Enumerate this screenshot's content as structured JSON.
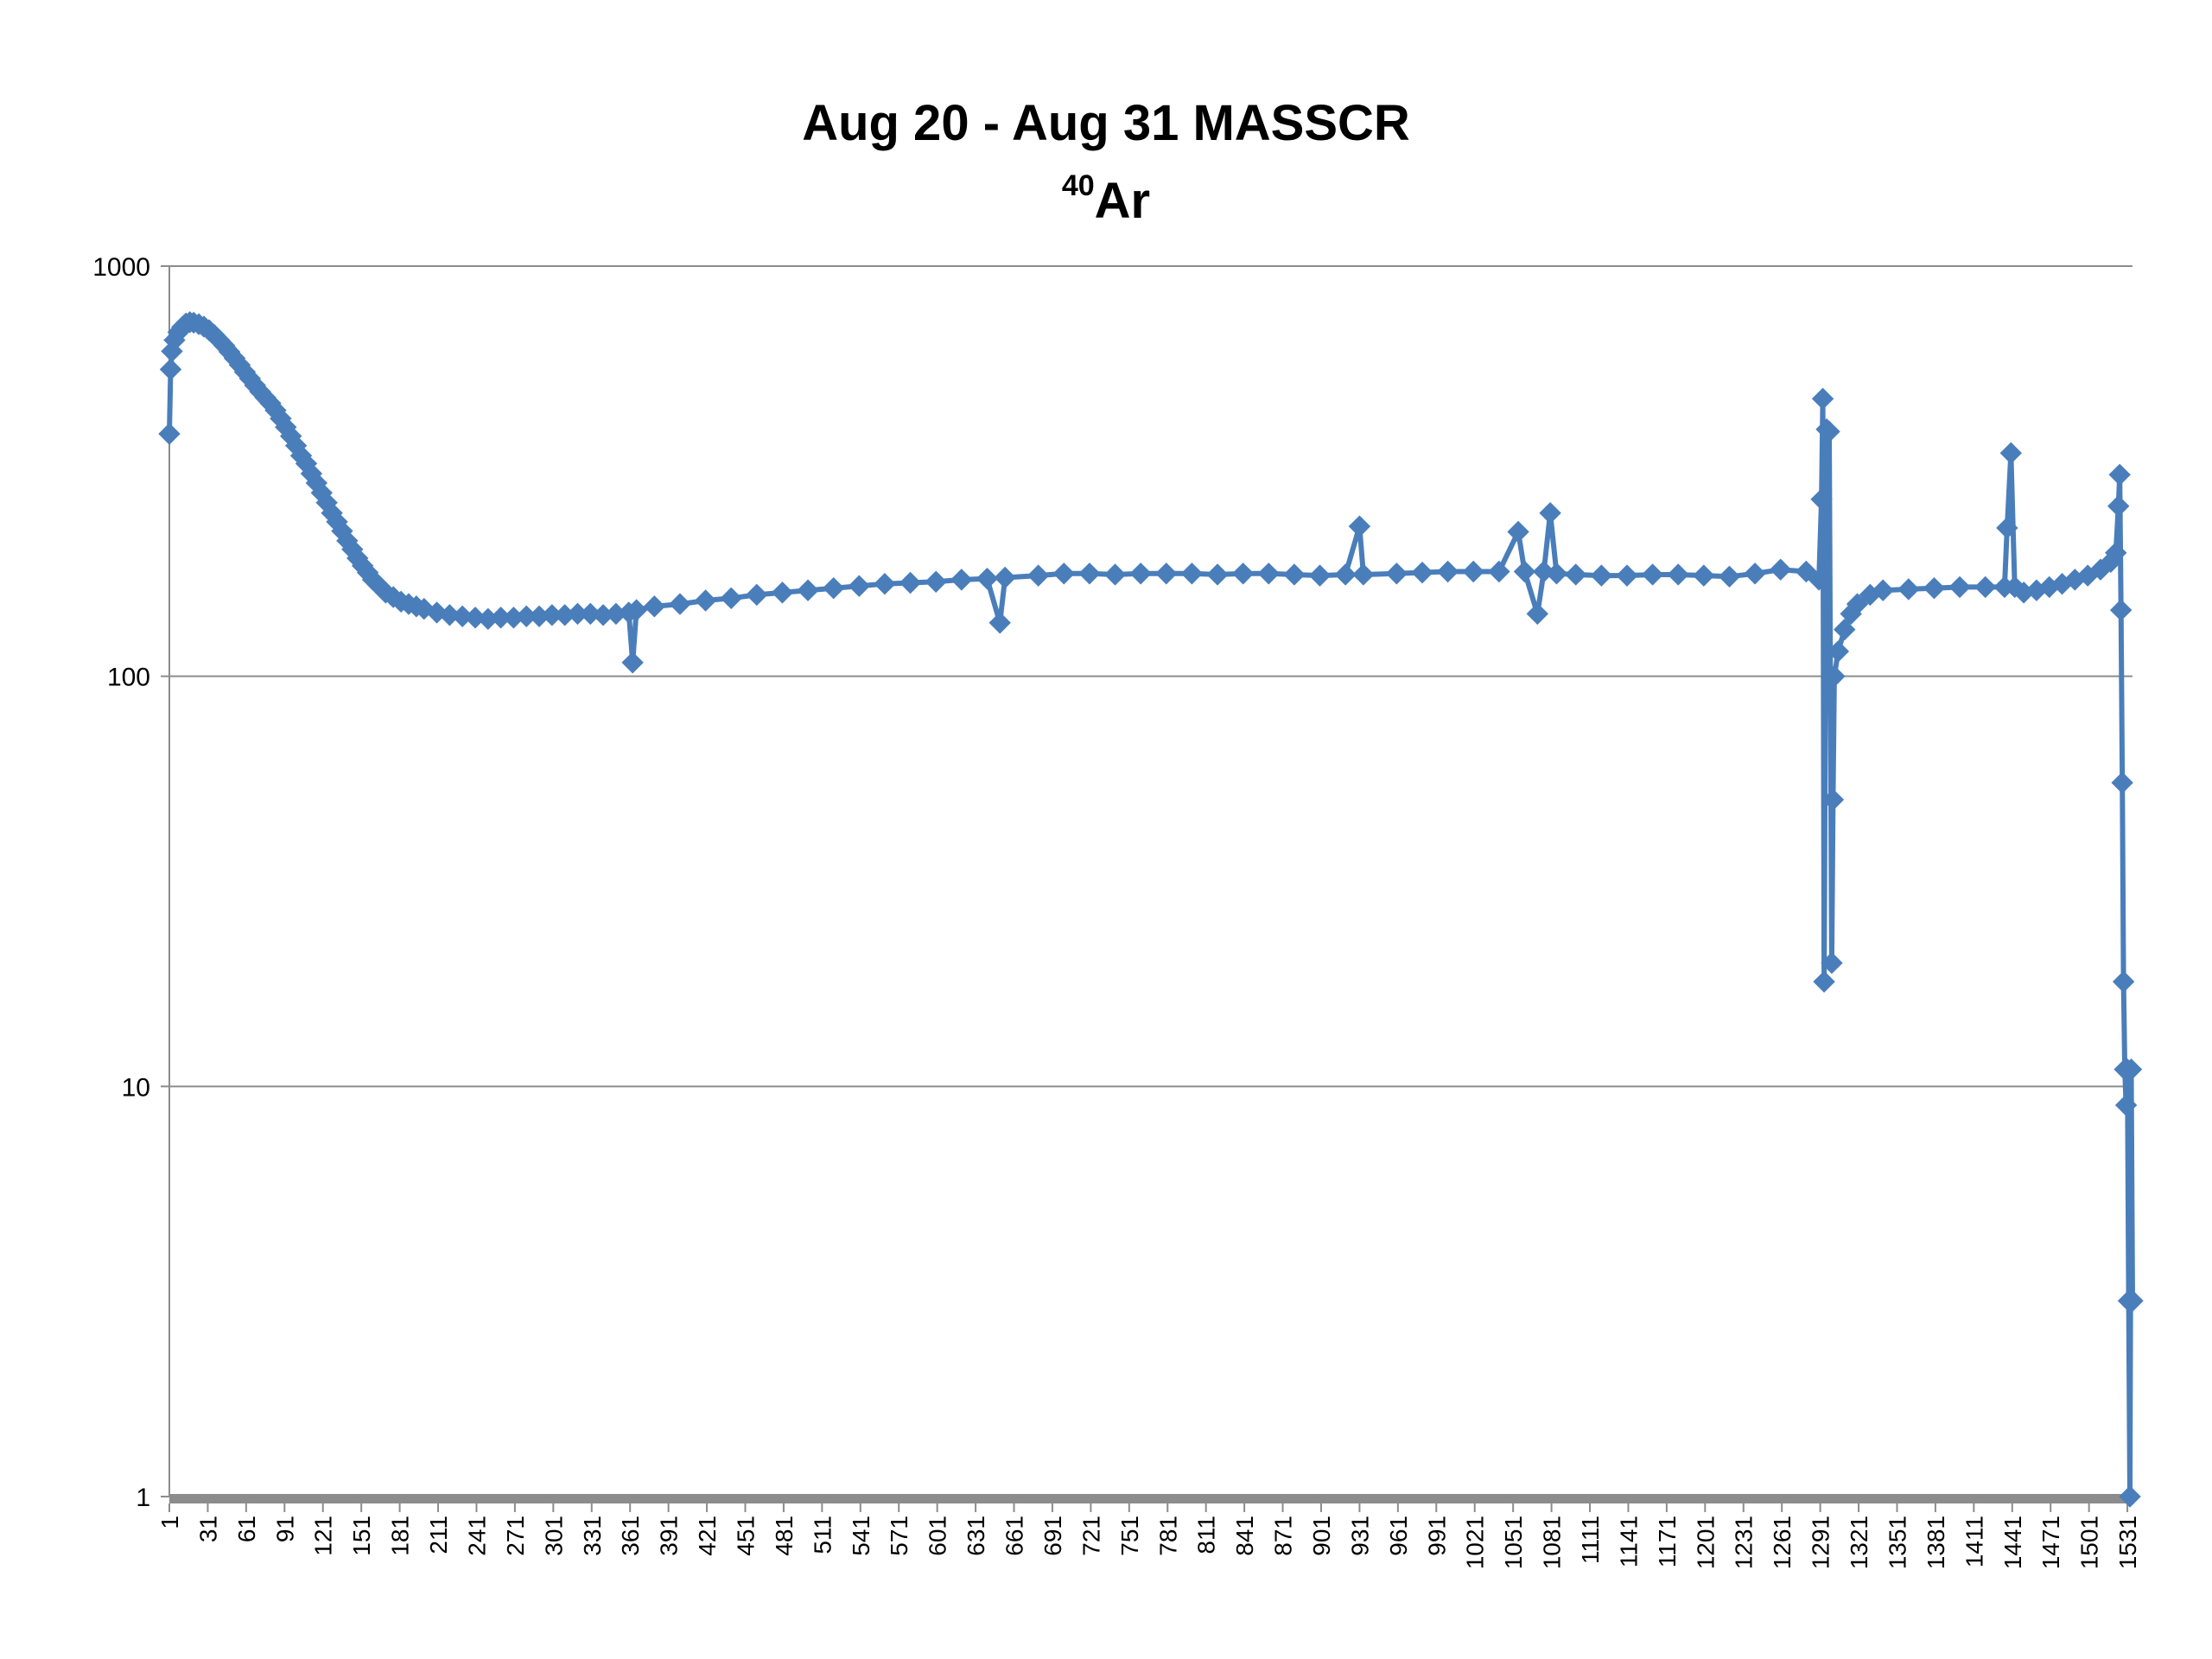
{
  "chart_data": {
    "type": "line",
    "title": "Aug 20 - Aug 31 MASSCR",
    "subtitle": {
      "superscript": "40",
      "text": "Ar"
    },
    "xlabel": "",
    "ylabel": "",
    "y_scale": "log",
    "ylim": [
      1,
      1000
    ],
    "y_ticks": [
      "1000",
      "100",
      "10",
      "1"
    ],
    "xlim": [
      1,
      1535
    ],
    "x_ticks": [
      "1",
      "31",
      "61",
      "91",
      "121",
      "151",
      "181",
      "211",
      "241",
      "271",
      "301",
      "331",
      "361",
      "391",
      "421",
      "451",
      "481",
      "511",
      "541",
      "571",
      "601",
      "631",
      "661",
      "691",
      "721",
      "751",
      "781",
      "811",
      "841",
      "871",
      "901",
      "931",
      "961",
      "991",
      "1021",
      "1051",
      "1081",
      "1111",
      "1141",
      "1171",
      "1201",
      "1231",
      "1261",
      "1291",
      "1321",
      "1351",
      "1381",
      "1411",
      "1441",
      "1471",
      "1501",
      "1531"
    ],
    "grid": true,
    "legend": "none",
    "colors": {
      "series": "#4a7ebb",
      "axis_baseline": "#8c8c8c",
      "grid": "#8c8c8c"
    },
    "series": [
      {
        "marker": "diamond",
        "points": [
          [
            1,
            390
          ],
          [
            2,
            560
          ],
          [
            3,
            620
          ],
          [
            5,
            660
          ],
          [
            8,
            690
          ],
          [
            11,
            710
          ],
          [
            14,
            725
          ],
          [
            17,
            730
          ],
          [
            20,
            728
          ],
          [
            24,
            722
          ],
          [
            28,
            712
          ],
          [
            32,
            698
          ],
          [
            36,
            680
          ],
          [
            40,
            660
          ],
          [
            44,
            640
          ],
          [
            48,
            618
          ],
          [
            52,
            596
          ],
          [
            56,
            574
          ],
          [
            60,
            552
          ],
          [
            64,
            532
          ],
          [
            68,
            512
          ],
          [
            72,
            494
          ],
          [
            76,
            478
          ],
          [
            80,
            463
          ],
          [
            84,
            445
          ],
          [
            88,
            425
          ],
          [
            92,
            405
          ],
          [
            96,
            385
          ],
          [
            100,
            365
          ],
          [
            104,
            345
          ],
          [
            108,
            330
          ],
          [
            112,
            312
          ],
          [
            116,
            296
          ],
          [
            120,
            280
          ],
          [
            124,
            265
          ],
          [
            128,
            250
          ],
          [
            132,
            238
          ],
          [
            136,
            226
          ],
          [
            140,
            214
          ],
          [
            144,
            204
          ],
          [
            148,
            194
          ],
          [
            152,
            186
          ],
          [
            156,
            179
          ],
          [
            160,
            172
          ],
          [
            165,
            166
          ],
          [
            170,
            160
          ],
          [
            176,
            156
          ],
          [
            182,
            152
          ],
          [
            188,
            150
          ],
          [
            194,
            148
          ],
          [
            200,
            146
          ],
          [
            210,
            143
          ],
          [
            220,
            141
          ],
          [
            230,
            140
          ],
          [
            240,
            139
          ],
          [
            250,
            138
          ],
          [
            260,
            139
          ],
          [
            270,
            139
          ],
          [
            280,
            140
          ],
          [
            290,
            140
          ],
          [
            300,
            141
          ],
          [
            310,
            141
          ],
          [
            320,
            142
          ],
          [
            330,
            142
          ],
          [
            340,
            141
          ],
          [
            350,
            142
          ],
          [
            360,
            143
          ],
          [
            363,
            108
          ],
          [
            366,
            145
          ],
          [
            380,
            148
          ],
          [
            400,
            150
          ],
          [
            420,
            153
          ],
          [
            440,
            155
          ],
          [
            460,
            158
          ],
          [
            480,
            160
          ],
          [
            500,
            162
          ],
          [
            520,
            164
          ],
          [
            540,
            166
          ],
          [
            560,
            168
          ],
          [
            580,
            169
          ],
          [
            600,
            170
          ],
          [
            620,
            172
          ],
          [
            640,
            173
          ],
          [
            650,
            135
          ],
          [
            654,
            174
          ],
          [
            680,
            176
          ],
          [
            700,
            178
          ],
          [
            720,
            178
          ],
          [
            740,
            177
          ],
          [
            760,
            178
          ],
          [
            780,
            178
          ],
          [
            800,
            178
          ],
          [
            820,
            177
          ],
          [
            840,
            178
          ],
          [
            860,
            178
          ],
          [
            880,
            177
          ],
          [
            900,
            176
          ],
          [
            920,
            177
          ],
          [
            931,
            232
          ],
          [
            934,
            177
          ],
          [
            960,
            178
          ],
          [
            980,
            179
          ],
          [
            1000,
            180
          ],
          [
            1020,
            180
          ],
          [
            1040,
            180
          ],
          [
            1055,
            225
          ],
          [
            1060,
            180
          ],
          [
            1070,
            142
          ],
          [
            1075,
            180
          ],
          [
            1080,
            250
          ],
          [
            1085,
            178
          ],
          [
            1100,
            177
          ],
          [
            1120,
            176
          ],
          [
            1140,
            176
          ],
          [
            1160,
            177
          ],
          [
            1180,
            177
          ],
          [
            1200,
            176
          ],
          [
            1220,
            175
          ],
          [
            1240,
            178
          ],
          [
            1260,
            182
          ],
          [
            1280,
            180
          ],
          [
            1290,
            172
          ],
          [
            1292,
            270
          ],
          [
            1293,
            475
          ],
          [
            1294,
            18
          ],
          [
            1296,
            400
          ],
          [
            1298,
            395
          ],
          [
            1300,
            20
          ],
          [
            1301,
            50
          ],
          [
            1302,
            100
          ],
          [
            1305,
            115
          ],
          [
            1310,
            130
          ],
          [
            1315,
            142
          ],
          [
            1320,
            150
          ],
          [
            1330,
            158
          ],
          [
            1340,
            162
          ],
          [
            1360,
            163
          ],
          [
            1380,
            164
          ],
          [
            1400,
            165
          ],
          [
            1420,
            165
          ],
          [
            1435,
            165
          ],
          [
            1437,
            230
          ],
          [
            1440,
            350
          ],
          [
            1443,
            165
          ],
          [
            1450,
            160
          ],
          [
            1460,
            162
          ],
          [
            1470,
            165
          ],
          [
            1480,
            168
          ],
          [
            1490,
            172
          ],
          [
            1500,
            176
          ],
          [
            1510,
            182
          ],
          [
            1518,
            190
          ],
          [
            1522,
            200
          ],
          [
            1524,
            260
          ],
          [
            1525,
            310
          ],
          [
            1526,
            145
          ],
          [
            1527,
            55
          ],
          [
            1528,
            18
          ],
          [
            1529,
            11
          ],
          [
            1530,
            9
          ],
          [
            1531,
            11
          ],
          [
            1532,
            3
          ],
          [
            1533,
            1
          ],
          [
            1534,
            11
          ],
          [
            1535,
            3
          ]
        ]
      }
    ]
  }
}
